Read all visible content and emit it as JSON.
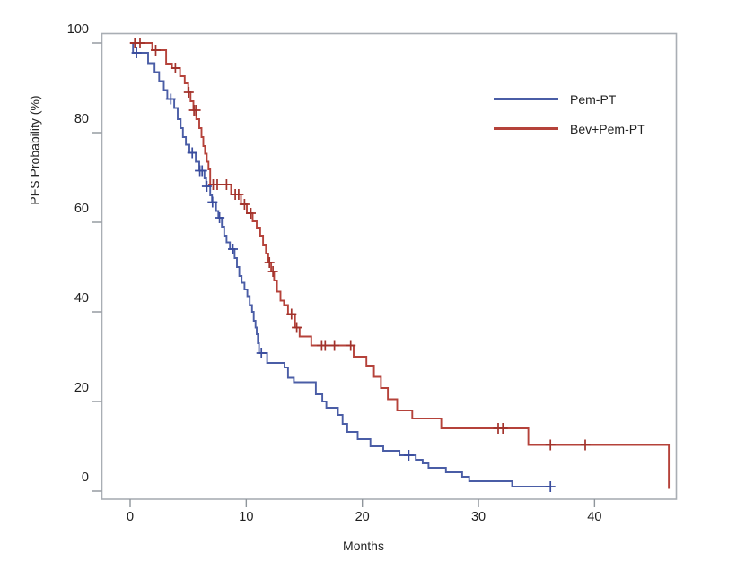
{
  "chart_data": {
    "type": "line",
    "subtype": "kaplan-meier-step-curve",
    "title": "",
    "xlabel": "Months",
    "ylabel": "PFS Probability (%)",
    "xlim": [
      0,
      47.1
    ],
    "ylim": [
      0,
      100
    ],
    "x_ticks": [
      0,
      10,
      20,
      30,
      40
    ],
    "y_ticks": [
      0,
      20,
      40,
      60,
      80,
      100
    ],
    "grid": false,
    "frame_color": "#a9aeb4",
    "tick_color": "#8f959b",
    "tick_label_color": "#1e1e1e",
    "legend_position": "upper-right-inside",
    "series": [
      {
        "name": "Pem-PT",
        "color": "#4a5da6",
        "censor_color": "#3a4d9e",
        "steps": [
          [
            0,
            100
          ],
          [
            0.25,
            97.8
          ],
          [
            1.55,
            95.5
          ],
          [
            2.1,
            93.5
          ],
          [
            2.5,
            91.5
          ],
          [
            2.9,
            89.5
          ],
          [
            3.2,
            87.5
          ],
          [
            3.8,
            85.5
          ],
          [
            4.1,
            83
          ],
          [
            4.35,
            81
          ],
          [
            4.55,
            79
          ],
          [
            4.8,
            77.3
          ],
          [
            5.1,
            75.5
          ],
          [
            5.65,
            73.5
          ],
          [
            5.95,
            71.5
          ],
          [
            6.4,
            69.8
          ],
          [
            6.55,
            68
          ],
          [
            6.9,
            66
          ],
          [
            7.05,
            64.5
          ],
          [
            7.4,
            62.5
          ],
          [
            7.6,
            61
          ],
          [
            7.9,
            59
          ],
          [
            8.1,
            57
          ],
          [
            8.3,
            55.5
          ],
          [
            8.6,
            54
          ],
          [
            9.0,
            52
          ],
          [
            9.2,
            50
          ],
          [
            9.4,
            48
          ],
          [
            9.6,
            46.5
          ],
          [
            9.85,
            45
          ],
          [
            10.1,
            43.5
          ],
          [
            10.3,
            41.5
          ],
          [
            10.5,
            40
          ],
          [
            10.65,
            38
          ],
          [
            10.8,
            36.5
          ],
          [
            10.9,
            35
          ],
          [
            11.0,
            33
          ],
          [
            11.1,
            30.8
          ],
          [
            11.8,
            28.6
          ],
          [
            13.3,
            27.6
          ],
          [
            13.6,
            25.3
          ],
          [
            14.1,
            24.3
          ],
          [
            16.0,
            21.6
          ],
          [
            16.55,
            20
          ],
          [
            16.9,
            18.6
          ],
          [
            17.9,
            17
          ],
          [
            18.3,
            15
          ],
          [
            18.7,
            13.2
          ],
          [
            19.6,
            11.6
          ],
          [
            20.7,
            10
          ],
          [
            21.8,
            9
          ],
          [
            23.2,
            8
          ],
          [
            24.6,
            7
          ],
          [
            25.2,
            6.2
          ],
          [
            25.7,
            5.2
          ],
          [
            27.2,
            4.2
          ],
          [
            28.6,
            3.2
          ],
          [
            29.2,
            2.2
          ],
          [
            32.9,
            1.0
          ],
          [
            36.2,
            1.0
          ]
        ],
        "censors": [
          [
            0.55,
            97.8
          ],
          [
            3.5,
            87.5
          ],
          [
            5.35,
            75.5
          ],
          [
            6.0,
            71.5
          ],
          [
            6.2,
            71.5
          ],
          [
            6.6,
            68
          ],
          [
            7.1,
            64.5
          ],
          [
            7.7,
            61
          ],
          [
            8.85,
            54
          ],
          [
            11.3,
            30.8
          ],
          [
            24.0,
            8
          ],
          [
            36.2,
            1.0
          ]
        ]
      },
      {
        "name": "Bev+Pem-PT",
        "color": "#b5423a",
        "censor_color": "#a2322b",
        "steps": [
          [
            0,
            100
          ],
          [
            1.9,
            98.4
          ],
          [
            3.1,
            95.4
          ],
          [
            3.6,
            94.4
          ],
          [
            4.3,
            92.6
          ],
          [
            4.7,
            91
          ],
          [
            5.0,
            89
          ],
          [
            5.2,
            87
          ],
          [
            5.45,
            85
          ],
          [
            5.7,
            83
          ],
          [
            5.95,
            81
          ],
          [
            6.15,
            79
          ],
          [
            6.3,
            77
          ],
          [
            6.45,
            75.3
          ],
          [
            6.6,
            73.5
          ],
          [
            6.75,
            71.8
          ],
          [
            6.9,
            68.4
          ],
          [
            8.7,
            66.2
          ],
          [
            9.55,
            64
          ],
          [
            10.05,
            62
          ],
          [
            10.55,
            60.2
          ],
          [
            10.9,
            58.8
          ],
          [
            11.2,
            57
          ],
          [
            11.45,
            55
          ],
          [
            11.7,
            53
          ],
          [
            11.9,
            51
          ],
          [
            12.15,
            49
          ],
          [
            12.4,
            47
          ],
          [
            12.65,
            44.5
          ],
          [
            12.95,
            42.5
          ],
          [
            13.25,
            41.5
          ],
          [
            13.6,
            39.5
          ],
          [
            14.2,
            36.5
          ],
          [
            14.6,
            34.5
          ],
          [
            15.6,
            32.5
          ],
          [
            19.25,
            30
          ],
          [
            20.35,
            28
          ],
          [
            21.0,
            25.5
          ],
          [
            21.6,
            23
          ],
          [
            22.2,
            20.5
          ],
          [
            23.0,
            18
          ],
          [
            24.3,
            16.2
          ],
          [
            26.8,
            14
          ],
          [
            34.3,
            10.3
          ],
          [
            46.4,
            0.5
          ]
        ],
        "censors": [
          [
            0.4,
            100
          ],
          [
            0.85,
            100
          ],
          [
            2.2,
            98.4
          ],
          [
            3.9,
            94.4
          ],
          [
            5.05,
            89
          ],
          [
            5.5,
            85
          ],
          [
            5.65,
            85
          ],
          [
            7.15,
            68.4
          ],
          [
            7.5,
            68.4
          ],
          [
            8.3,
            68.4
          ],
          [
            9.05,
            66.2
          ],
          [
            9.35,
            66.2
          ],
          [
            9.85,
            64
          ],
          [
            10.4,
            62
          ],
          [
            12.0,
            51
          ],
          [
            12.3,
            49
          ],
          [
            13.9,
            39.5
          ],
          [
            14.35,
            36.5
          ],
          [
            16.5,
            32.5
          ],
          [
            16.8,
            32.5
          ],
          [
            17.6,
            32.5
          ],
          [
            19.0,
            32.5
          ],
          [
            31.7,
            14
          ],
          [
            32.1,
            14
          ],
          [
            36.2,
            10.3
          ],
          [
            39.2,
            10.3
          ]
        ]
      }
    ]
  }
}
